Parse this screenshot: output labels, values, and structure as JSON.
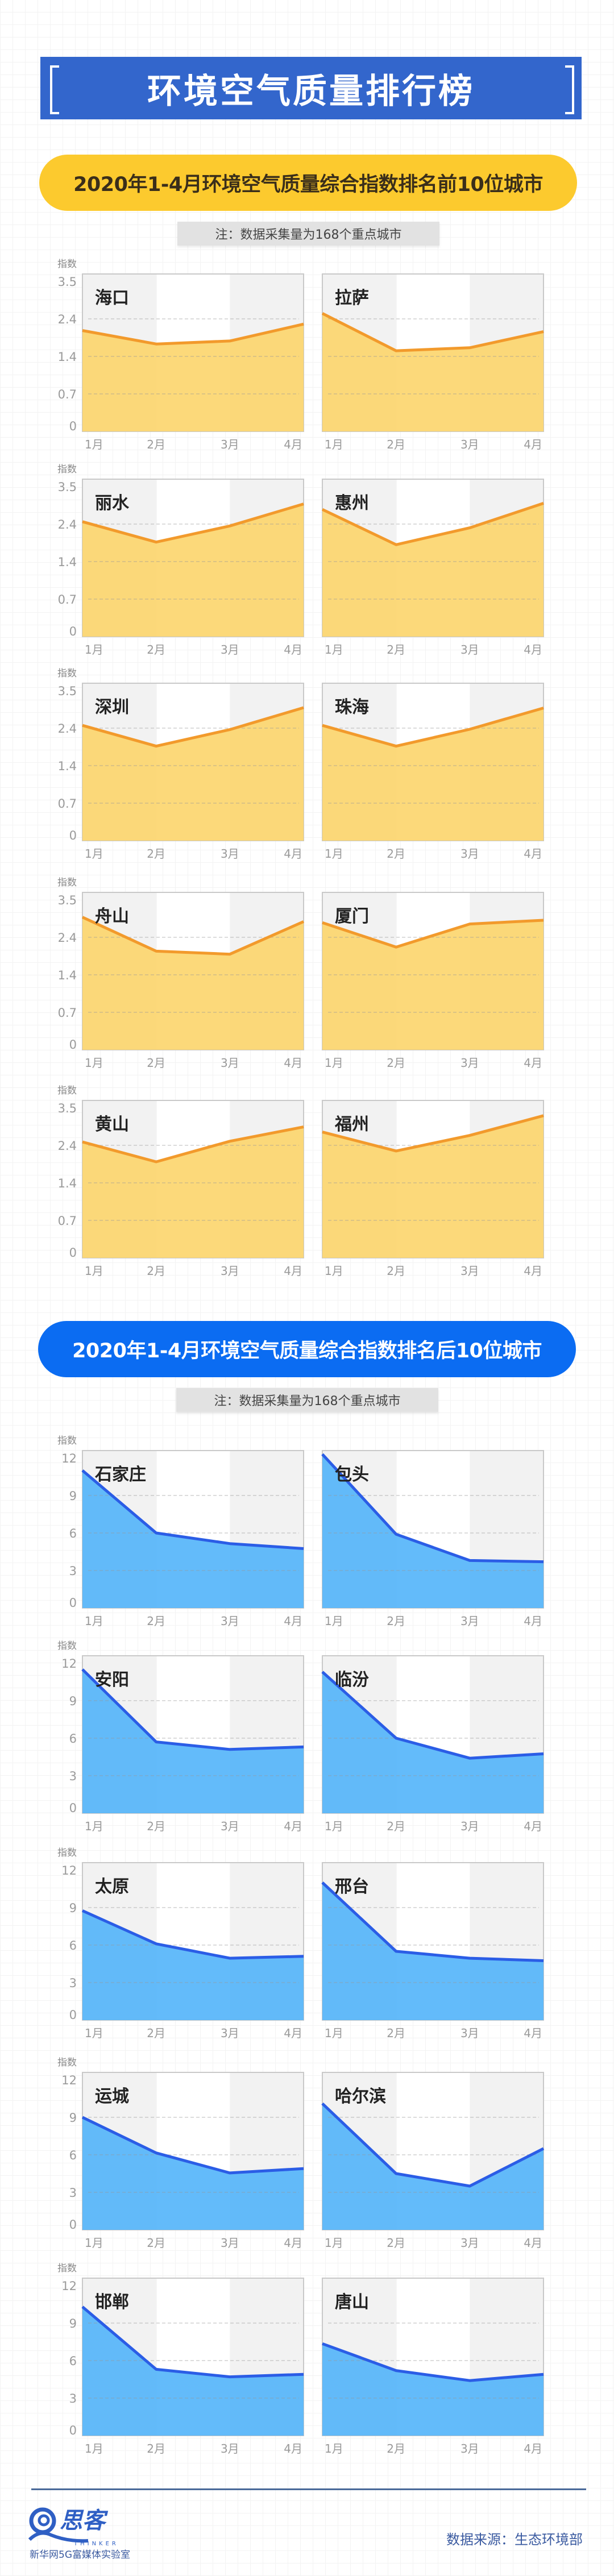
{
  "header": {
    "title": "环境空气质量排行榜"
  },
  "sections": [
    {
      "title": "2020年1-4月环境空气质量综合指数排名前10位城市",
      "note": "注：数据采集量为168个重点城市",
      "fill_color": "#fcd670",
      "line_color": "#f29a2c"
    },
    {
      "title": "2020年1-4月环境空气质量综合指数排名后10位城市",
      "note": "注：数据采集量为168个重点城市",
      "fill_color": "#57b6fa",
      "line_color": "#2b5de6"
    }
  ],
  "chart_data": [
    {
      "type": "area",
      "title": "海口",
      "categories": [
        "1月",
        "2月",
        "3月",
        "4月"
      ],
      "values": [
        2.09,
        1.73,
        1.81,
        2.26
      ],
      "ylabel": "指数",
      "yticks": [
        "0",
        "0.7",
        "1.4",
        "2.4",
        "3.5"
      ],
      "ylim": [
        0,
        3.5
      ]
    },
    {
      "type": "area",
      "title": "拉萨",
      "categories": [
        "1月",
        "2月",
        "3月",
        "4月"
      ],
      "values": [
        2.56,
        1.55,
        1.63,
        2.06
      ],
      "ylabel": "指数",
      "yticks": [
        "0",
        "0.7",
        "1.4",
        "2.4",
        "3.5"
      ],
      "ylim": [
        0,
        3.5
      ]
    },
    {
      "type": "area",
      "title": "丽水",
      "categories": [
        "1月",
        "2月",
        "3月",
        "4月"
      ],
      "values": [
        2.47,
        1.92,
        2.35,
        2.99
      ],
      "ylabel": "指数",
      "yticks": [
        "0",
        "0.7",
        "1.4",
        "2.4",
        "3.5"
      ],
      "ylim": [
        0,
        3.5
      ]
    },
    {
      "type": "area",
      "title": "惠州",
      "categories": [
        "1月",
        "2月",
        "3月",
        "4月"
      ],
      "values": [
        2.83,
        1.85,
        2.3,
        3.01
      ],
      "ylabel": "指数",
      "yticks": [
        "0",
        "0.7",
        "1.4",
        "2.4",
        "3.5"
      ],
      "ylim": [
        0,
        3.5
      ]
    },
    {
      "type": "area",
      "title": "深圳",
      "categories": [
        "1月",
        "2月",
        "3月",
        "4月"
      ],
      "values": [
        2.48,
        1.92,
        2.36,
        3.0
      ],
      "ylabel": "指数",
      "yticks": [
        "0",
        "0.7",
        "1.4",
        "2.4",
        "3.5"
      ],
      "ylim": [
        0,
        3.5
      ]
    },
    {
      "type": "area",
      "title": "珠海",
      "categories": [
        "1月",
        "2月",
        "3月",
        "4月"
      ],
      "values": [
        2.48,
        1.92,
        2.37,
        2.99
      ],
      "ylabel": "指数",
      "yticks": [
        "0",
        "0.7",
        "1.4",
        "2.4",
        "3.5"
      ],
      "ylim": [
        0,
        3.5
      ]
    },
    {
      "type": "area",
      "title": "舟山",
      "categories": [
        "1月",
        "2月",
        "3月",
        "4月"
      ],
      "values": [
        2.99,
        2.03,
        1.95,
        2.86
      ],
      "ylabel": "指数",
      "yticks": [
        "0",
        "0.7",
        "1.4",
        "2.4",
        "3.5"
      ],
      "ylim": [
        0,
        3.5
      ]
    },
    {
      "type": "area",
      "title": "厦门",
      "categories": [
        "1月",
        "2月",
        "3月",
        "4月"
      ],
      "values": [
        2.83,
        2.14,
        2.79,
        2.9
      ],
      "ylabel": "指数",
      "yticks": [
        "0",
        "0.7",
        "1.4",
        "2.4",
        "3.5"
      ],
      "ylim": [
        0,
        3.5
      ]
    },
    {
      "type": "area",
      "title": "黄山",
      "categories": [
        "1月",
        "2月",
        "3月",
        "4月"
      ],
      "values": [
        2.5,
        1.96,
        2.52,
        2.94
      ],
      "ylabel": "指数",
      "yticks": [
        "0",
        "0.7",
        "1.4",
        "2.4",
        "3.5"
      ],
      "ylim": [
        0,
        3.5
      ]
    },
    {
      "type": "area",
      "title": "福州",
      "categories": [
        "1月",
        "2月",
        "3月",
        "4月"
      ],
      "values": [
        2.79,
        2.25,
        2.69,
        3.27
      ],
      "ylabel": "指数",
      "yticks": [
        "0",
        "0.7",
        "1.4",
        "2.4",
        "3.5"
      ],
      "ylim": [
        0,
        3.5
      ]
    },
    {
      "type": "area",
      "title": "石家庄",
      "categories": [
        "1月",
        "2月",
        "3月",
        "4月"
      ],
      "values": [
        11.0,
        6.0,
        5.15,
        4.75
      ],
      "ylabel": "指数",
      "yticks": [
        "0",
        "3",
        "6",
        "9",
        "12"
      ],
      "ylim": [
        0,
        12
      ]
    },
    {
      "type": "area",
      "title": "包头",
      "categories": [
        "1月",
        "2月",
        "3月",
        "4月"
      ],
      "values": [
        12.3,
        5.9,
        3.8,
        3.7
      ],
      "ylabel": "指数",
      "yticks": [
        "0",
        "3",
        "6",
        "9",
        "12"
      ],
      "ylim": [
        0,
        12
      ]
    },
    {
      "type": "area",
      "title": "安阳",
      "categories": [
        "1月",
        "2月",
        "3月",
        "4月"
      ],
      "values": [
        11.5,
        5.7,
        5.1,
        5.3
      ],
      "ylabel": "指数",
      "yticks": [
        "0",
        "3",
        "6",
        "9",
        "12"
      ],
      "ylim": [
        0,
        12
      ]
    },
    {
      "type": "area",
      "title": "临汾",
      "categories": [
        "1月",
        "2月",
        "3月",
        "4月"
      ],
      "values": [
        11.3,
        6.0,
        4.4,
        4.75
      ],
      "ylabel": "指数",
      "yticks": [
        "0",
        "3",
        "6",
        "9",
        "12"
      ],
      "ylim": [
        0,
        12
      ]
    },
    {
      "type": "area",
      "title": "太原",
      "categories": [
        "1月",
        "2月",
        "3月",
        "4月"
      ],
      "values": [
        8.75,
        6.1,
        4.95,
        5.1
      ],
      "ylabel": "指数",
      "yticks": [
        "0",
        "3",
        "6",
        "9",
        "12"
      ],
      "ylim": [
        0,
        12
      ]
    },
    {
      "type": "area",
      "title": "邢台",
      "categories": [
        "1月",
        "2月",
        "3月",
        "4月"
      ],
      "values": [
        11.0,
        5.5,
        4.95,
        4.75
      ],
      "ylabel": "指数",
      "yticks": [
        "0",
        "3",
        "6",
        "9",
        "12"
      ],
      "ylim": [
        0,
        12
      ]
    },
    {
      "type": "area",
      "title": "运城",
      "categories": [
        "1月",
        "2月",
        "3月",
        "4月"
      ],
      "values": [
        9.0,
        6.15,
        4.55,
        4.9
      ],
      "ylabel": "指数",
      "yticks": [
        "0",
        "3",
        "6",
        "9",
        "12"
      ],
      "ylim": [
        0,
        12
      ]
    },
    {
      "type": "area",
      "title": "哈尔滨",
      "categories": [
        "1月",
        "2月",
        "3月",
        "4月"
      ],
      "values": [
        10.1,
        4.5,
        3.5,
        6.5
      ],
      "ylabel": "指数",
      "yticks": [
        "0",
        "3",
        "6",
        "9",
        "12"
      ],
      "ylim": [
        0,
        12
      ]
    },
    {
      "type": "area",
      "title": "邯郸",
      "categories": [
        "1月",
        "2月",
        "3月",
        "4月"
      ],
      "values": [
        10.3,
        5.3,
        4.7,
        4.9
      ],
      "ylabel": "指数",
      "yticks": [
        "0",
        "3",
        "6",
        "9",
        "12"
      ],
      "ylim": [
        0,
        12
      ]
    },
    {
      "type": "area",
      "title": "唐山",
      "categories": [
        "1月",
        "2月",
        "3月",
        "4月"
      ],
      "values": [
        7.35,
        5.2,
        4.4,
        4.9
      ],
      "ylabel": "指数",
      "yticks": [
        "0",
        "3",
        "6",
        "9",
        "12"
      ],
      "ylim": [
        0,
        12
      ]
    }
  ],
  "footer": {
    "source": "数据来源：生态环境部",
    "logo_text": "思客",
    "logo_sub": "THINKER",
    "lab": "新华网5G富媒体实验室",
    "logo_color": "#2f5fc4"
  }
}
